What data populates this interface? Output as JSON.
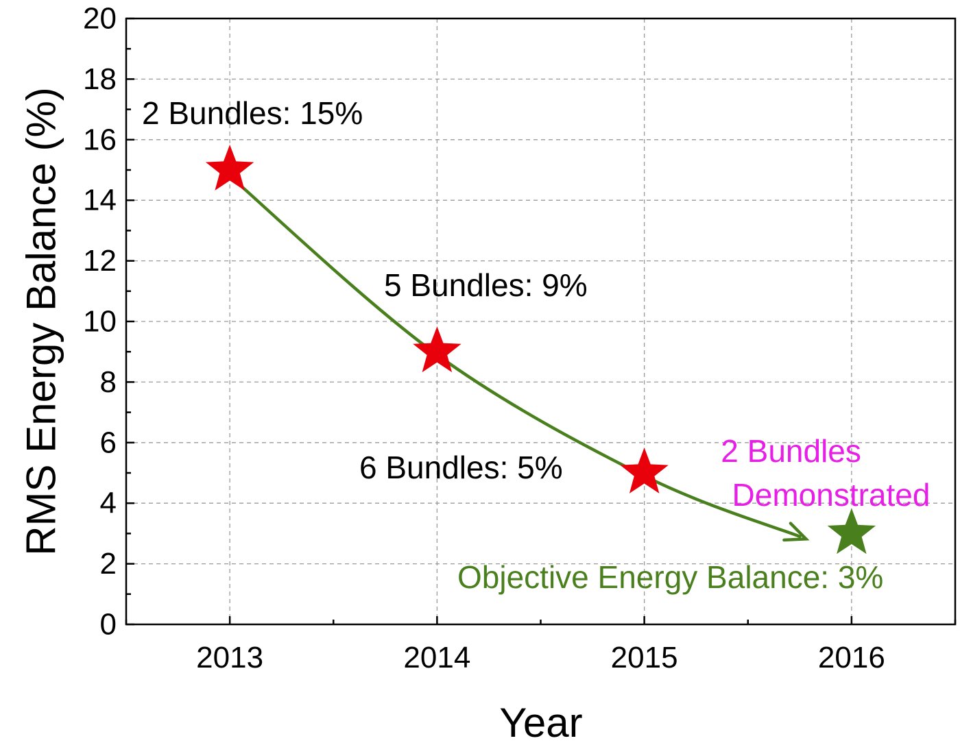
{
  "chart_data": {
    "type": "scatter",
    "title": "",
    "xlabel": "Year",
    "ylabel": "RMS Energy Balance (%)",
    "x_ticks": [
      "2013",
      "2014",
      "2015",
      "2016"
    ],
    "y_ticks": [
      "0",
      "2",
      "4",
      "6",
      "8",
      "10",
      "12",
      "14",
      "16",
      "18",
      "20"
    ],
    "xlim": [
      2012.5,
      2016.5
    ],
    "ylim": [
      0,
      20
    ],
    "grid": true,
    "series": [
      {
        "color": "#e8000b",
        "marker": "star",
        "points": [
          {
            "x": 2013,
            "y": 15,
            "label": "2 Bundles: 15%"
          },
          {
            "x": 2014,
            "y": 9,
            "label": "5 Bundles: 9%"
          },
          {
            "x": 2015,
            "y": 5,
            "label": "6 Bundles: 5%"
          }
        ]
      },
      {
        "color": "#4a7f1e",
        "marker": "star",
        "points": [
          {
            "x": 2016,
            "y": 3,
            "label": "Objective Energy Balance: 3%"
          }
        ]
      }
    ],
    "trend_arrow": {
      "color": "#4a7f1e",
      "points": [
        {
          "x": 2013,
          "y": 14.8
        },
        {
          "x": 2014,
          "y": 8.9
        },
        {
          "x": 2015,
          "y": 4.9
        },
        {
          "x": 2015.75,
          "y": 2.9
        }
      ]
    },
    "annotations": [
      {
        "text_lines": [
          "2 Bundles",
          "Demonstrated"
        ],
        "color": "#e61ee6"
      }
    ]
  }
}
